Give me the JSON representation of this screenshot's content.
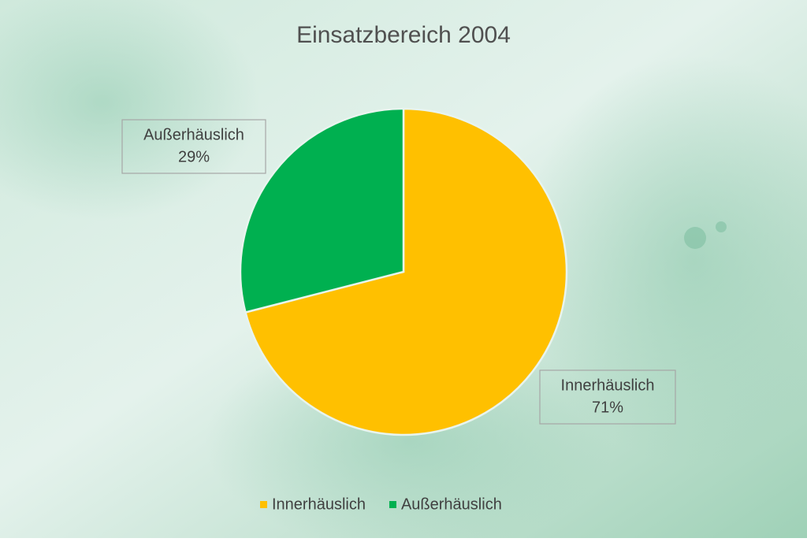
{
  "chart_data": {
    "type": "pie",
    "title": "Einsatzbereich 2004",
    "categories": [
      "Innerhäuslich",
      "Außerhäuslich"
    ],
    "values": [
      71,
      29
    ],
    "value_labels": [
      "71%",
      "29%"
    ],
    "colors": [
      "#ffc000",
      "#00b050"
    ],
    "legend": "bottom"
  }
}
